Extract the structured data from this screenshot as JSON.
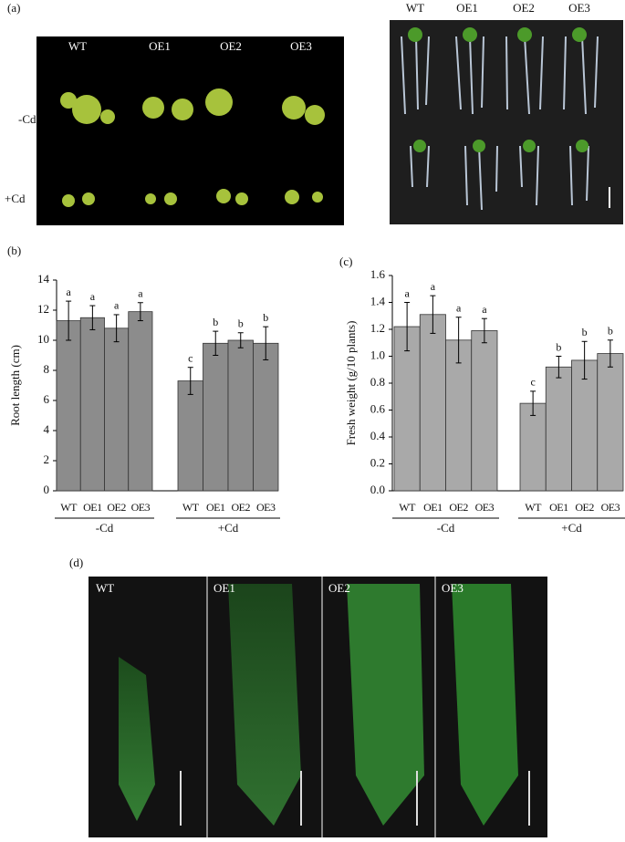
{
  "panel_labels": [
    "(a)",
    "(b)",
    "(c)",
    "(d)"
  ],
  "photo_a_rosettes": {
    "columns": [
      "WT",
      "OE1",
      "OE2",
      "OE3"
    ],
    "rows": [
      "-Cd",
      "+Cd"
    ]
  },
  "photo_a_roots": {
    "columns": [
      "WT",
      "OE1",
      "OE2",
      "OE3"
    ],
    "rows": [
      "-Cd",
      "+Cd"
    ]
  },
  "photo_d": {
    "labels": [
      "WT",
      "OE1",
      "OE2",
      "OE3"
    ]
  },
  "chart_data": [
    {
      "type": "bar",
      "ylabel": "Root length (cm)",
      "categories": [
        "WT",
        "OE1",
        "OE2",
        "OE3",
        "WT",
        "OE1",
        "OE2",
        "OE3"
      ],
      "groups": [
        "-Cd",
        "+Cd"
      ],
      "values": [
        11.3,
        11.5,
        10.8,
        11.9,
        7.3,
        9.8,
        10.0,
        9.8
      ],
      "errors": [
        1.3,
        0.8,
        0.9,
        0.6,
        0.9,
        0.8,
        0.5,
        1.1
      ],
      "letters": [
        "a",
        "a",
        "a",
        "a",
        "c",
        "b",
        "b",
        "b"
      ],
      "color": "#8c8c8c",
      "ylim": [
        0,
        14
      ],
      "yticks": [
        0,
        2,
        4,
        6,
        8,
        10,
        12,
        14
      ]
    },
    {
      "type": "bar",
      "ylabel": "Fresh weight (g/10 plants)",
      "categories": [
        "WT",
        "OE1",
        "OE2",
        "OE3",
        "WT",
        "OE1",
        "OE2",
        "OE3"
      ],
      "groups": [
        "-Cd",
        "+Cd"
      ],
      "values": [
        1.22,
        1.31,
        1.12,
        1.19,
        0.65,
        0.92,
        0.97,
        1.02
      ],
      "errors": [
        0.18,
        0.14,
        0.17,
        0.09,
        0.09,
        0.08,
        0.14,
        0.1
      ],
      "letters": [
        "a",
        "a",
        "a",
        "a",
        "c",
        "b",
        "b",
        "b"
      ],
      "color": "#a9a9a9",
      "ylim": [
        0,
        1.6
      ],
      "yticks": [
        {
          "value": 0,
          "label": "0.0"
        },
        0.2,
        0.4,
        0.6,
        0.8,
        {
          "value": 1,
          "label": "1.0"
        },
        1.2,
        1.4,
        1.6
      ]
    }
  ]
}
